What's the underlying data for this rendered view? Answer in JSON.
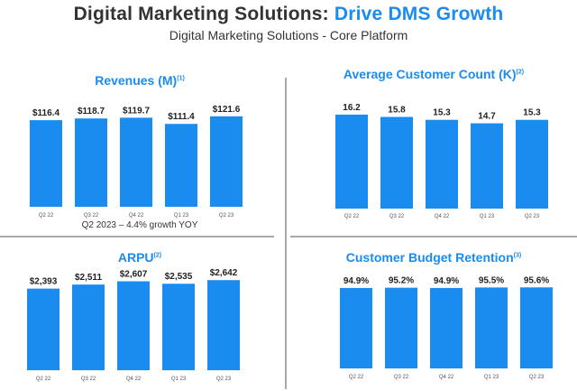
{
  "header": {
    "title_prefix": "Digital Marketing Solutions: ",
    "title_accent": "Drive DMS Growth",
    "subtitle": "Digital Marketing Solutions - Core Platform"
  },
  "colors": {
    "bar": "#1a8cf0",
    "accent": "#1a8cf0",
    "text": "#333333",
    "divider": "#a9a9a9"
  },
  "chart_data": [
    {
      "type": "bar",
      "title": "Revenues (M)",
      "footnote": "(1)",
      "categories": [
        "Q2 22",
        "Q3 22",
        "Q4 22",
        "Q1 23",
        "Q2 23"
      ],
      "values": [
        116.4,
        118.7,
        119.7,
        111.4,
        121.6
      ],
      "labels": [
        "$116.4",
        "$118.7",
        "$119.7",
        "$111.4",
        "$121.6"
      ],
      "note": "Q2 2023 – 4.4% growth YOY",
      "ylim": [
        0,
        125
      ]
    },
    {
      "type": "bar",
      "title": "Average Customer Count (K)",
      "footnote": "(2)",
      "categories": [
        "Q2 22",
        "Q3 22",
        "Q4 22",
        "Q1 23",
        "Q2 23"
      ],
      "values": [
        16.2,
        15.8,
        15.3,
        14.7,
        15.3
      ],
      "labels": [
        "16.2",
        "15.8",
        "15.3",
        "14.7",
        "15.3"
      ],
      "ylim": [
        0,
        16.5
      ]
    },
    {
      "type": "bar",
      "title": "ARPU",
      "footnote": "(2)",
      "categories": [
        "Q2 22",
        "Q3 22",
        "Q4 22",
        "Q1 23",
        "Q2 23"
      ],
      "values": [
        2393,
        2511,
        2607,
        2535,
        2642
      ],
      "labels": [
        "$2,393",
        "$2,511",
        "$2,607",
        "$2,535",
        "$2,642"
      ],
      "ylim": [
        0,
        2700
      ]
    },
    {
      "type": "bar",
      "title": "Customer Budget Retention",
      "footnote": "(3)",
      "categories": [
        "Q2 22",
        "Q3 22",
        "Q4 22",
        "Q1 23",
        "Q2 23"
      ],
      "values": [
        94.9,
        95.2,
        94.9,
        95.5,
        95.6
      ],
      "labels": [
        "94.9%",
        "95.2%",
        "94.9%",
        "95.5%",
        "95.6%"
      ],
      "ylim": [
        0,
        98
      ]
    }
  ]
}
